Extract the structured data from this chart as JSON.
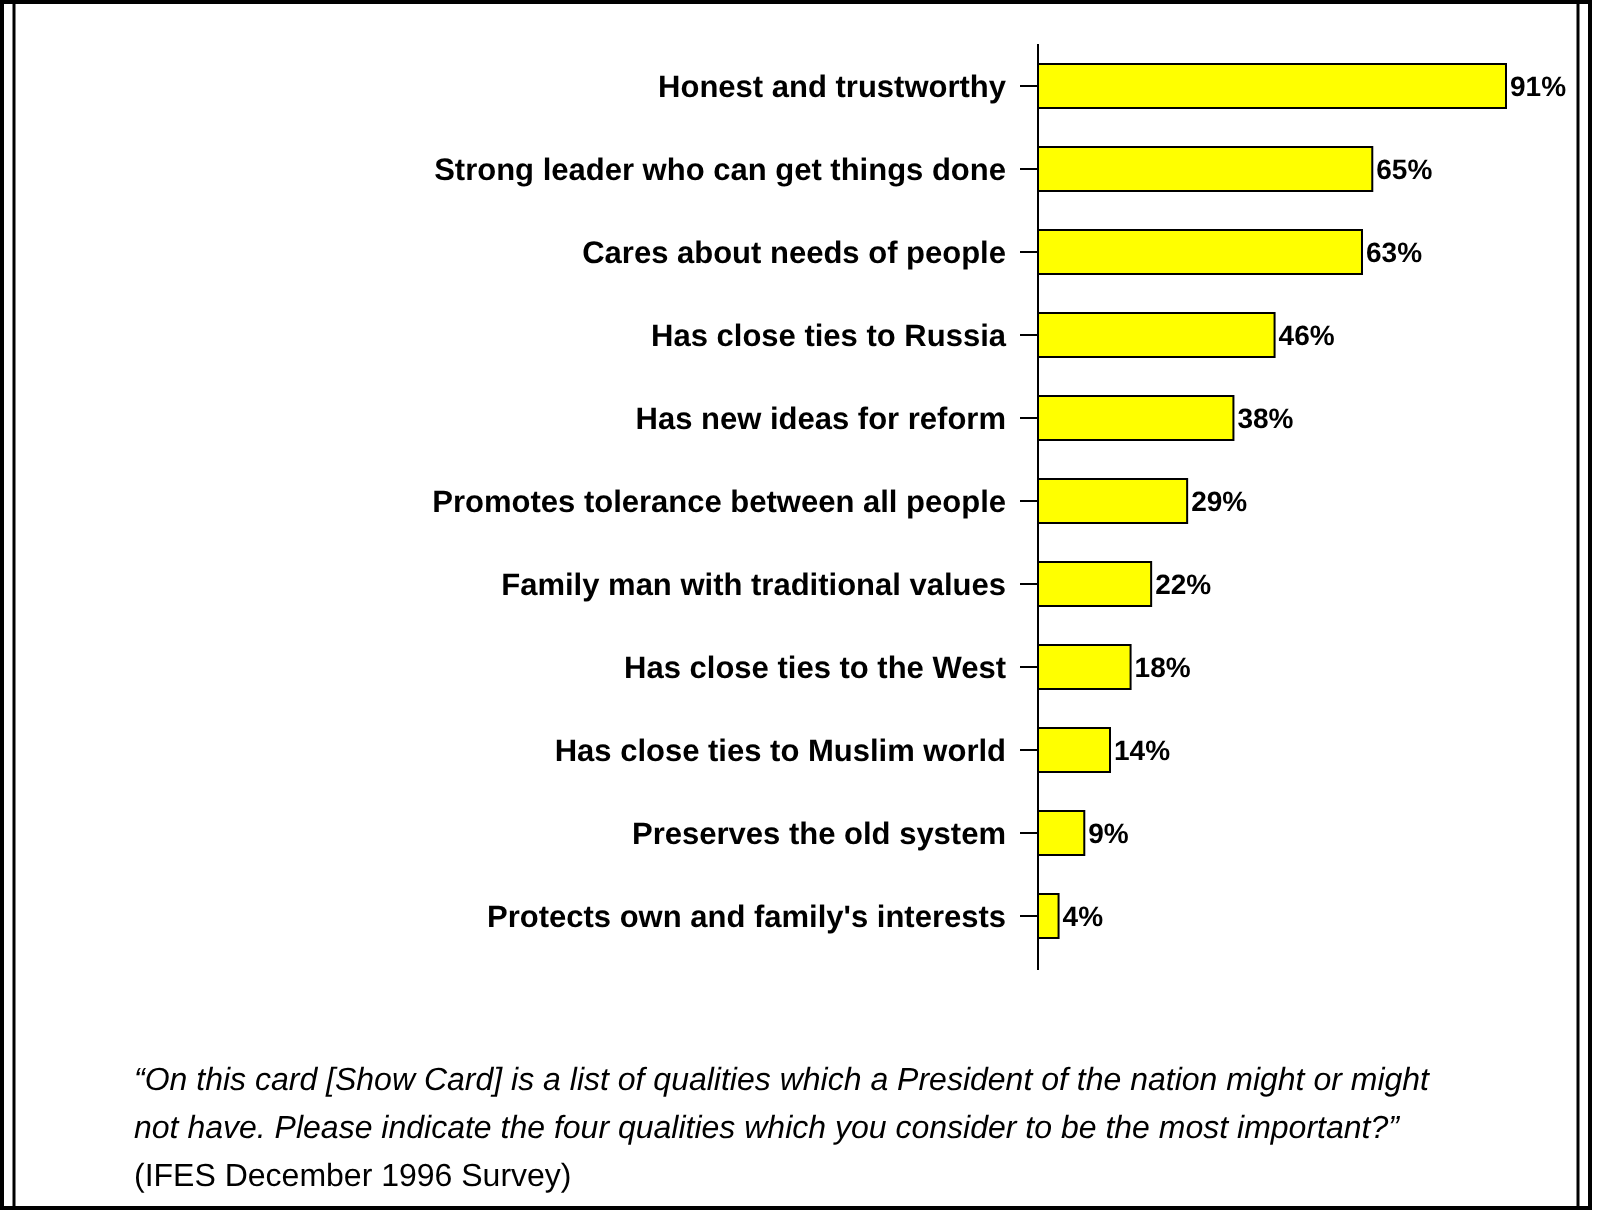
{
  "chart_data": {
    "type": "bar",
    "orientation": "horizontal",
    "categories": [
      "Honest and trustworthy",
      "Strong leader who can get things done",
      "Cares about needs of people",
      "Has close ties to Russia",
      "Has new ideas for reform",
      "Promotes tolerance between all people",
      "Family man with traditional values",
      "Has close ties to the West",
      "Has close ties to Muslim world",
      "Preserves the old system",
      "Protects own and family's interests"
    ],
    "values": [
      91,
      65,
      63,
      46,
      38,
      29,
      22,
      18,
      14,
      9,
      4
    ],
    "value_labels": [
      "91%",
      "65%",
      "63%",
      "46%",
      "38%",
      "29%",
      "22%",
      "18%",
      "14%",
      "9%",
      "4%"
    ],
    "color": "#ffff00",
    "tick_labels": "y",
    "annotations": [
      "“On this card [Show Card] is a list of qualities which a President of the nation might or might not have.  Please indicate the four qualities which you consider to be the most important?”",
      "(IFES December 1996 Survey)"
    ]
  }
}
